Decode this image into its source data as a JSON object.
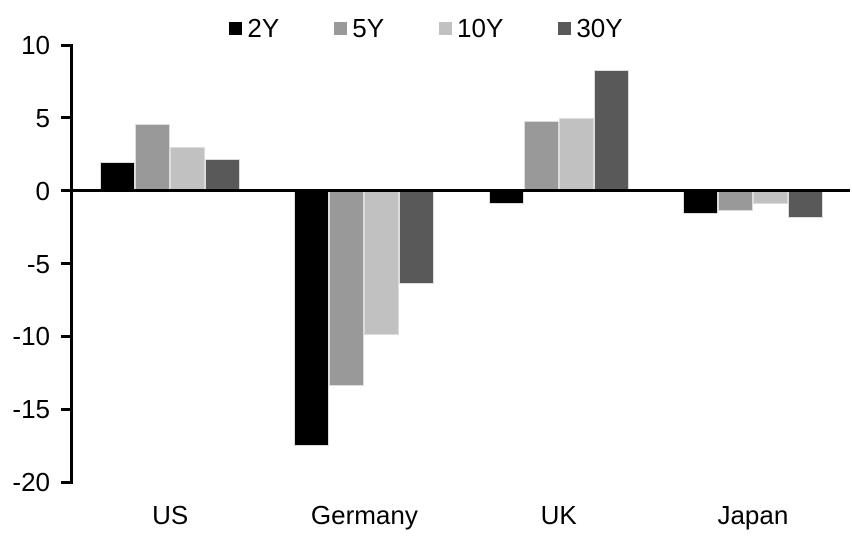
{
  "chart_data": {
    "type": "bar",
    "title": "",
    "xlabel": "",
    "ylabel": "",
    "categories": [
      "US",
      "Germany",
      "UK",
      "Japan"
    ],
    "series": [
      {
        "name": "2Y",
        "color": "#000000",
        "values": [
          2.0,
          -17.5,
          -0.9,
          -1.6
        ]
      },
      {
        "name": "5Y",
        "color": "#999999",
        "values": [
          4.6,
          -13.4,
          4.8,
          -1.4
        ]
      },
      {
        "name": "10Y",
        "color": "#C1C1C1",
        "values": [
          3.0,
          -9.9,
          5.0,
          -0.9
        ]
      },
      {
        "name": "30Y",
        "color": "#595959",
        "values": [
          2.2,
          -6.4,
          8.3,
          -1.9
        ]
      }
    ],
    "ylim": [
      -20,
      10
    ],
    "yticks": [
      10,
      5,
      0,
      -5,
      -10,
      -15,
      -20
    ],
    "grid": false,
    "legend_position": "top",
    "axis_color": "#000000",
    "background_color": "#FFFFFF"
  }
}
